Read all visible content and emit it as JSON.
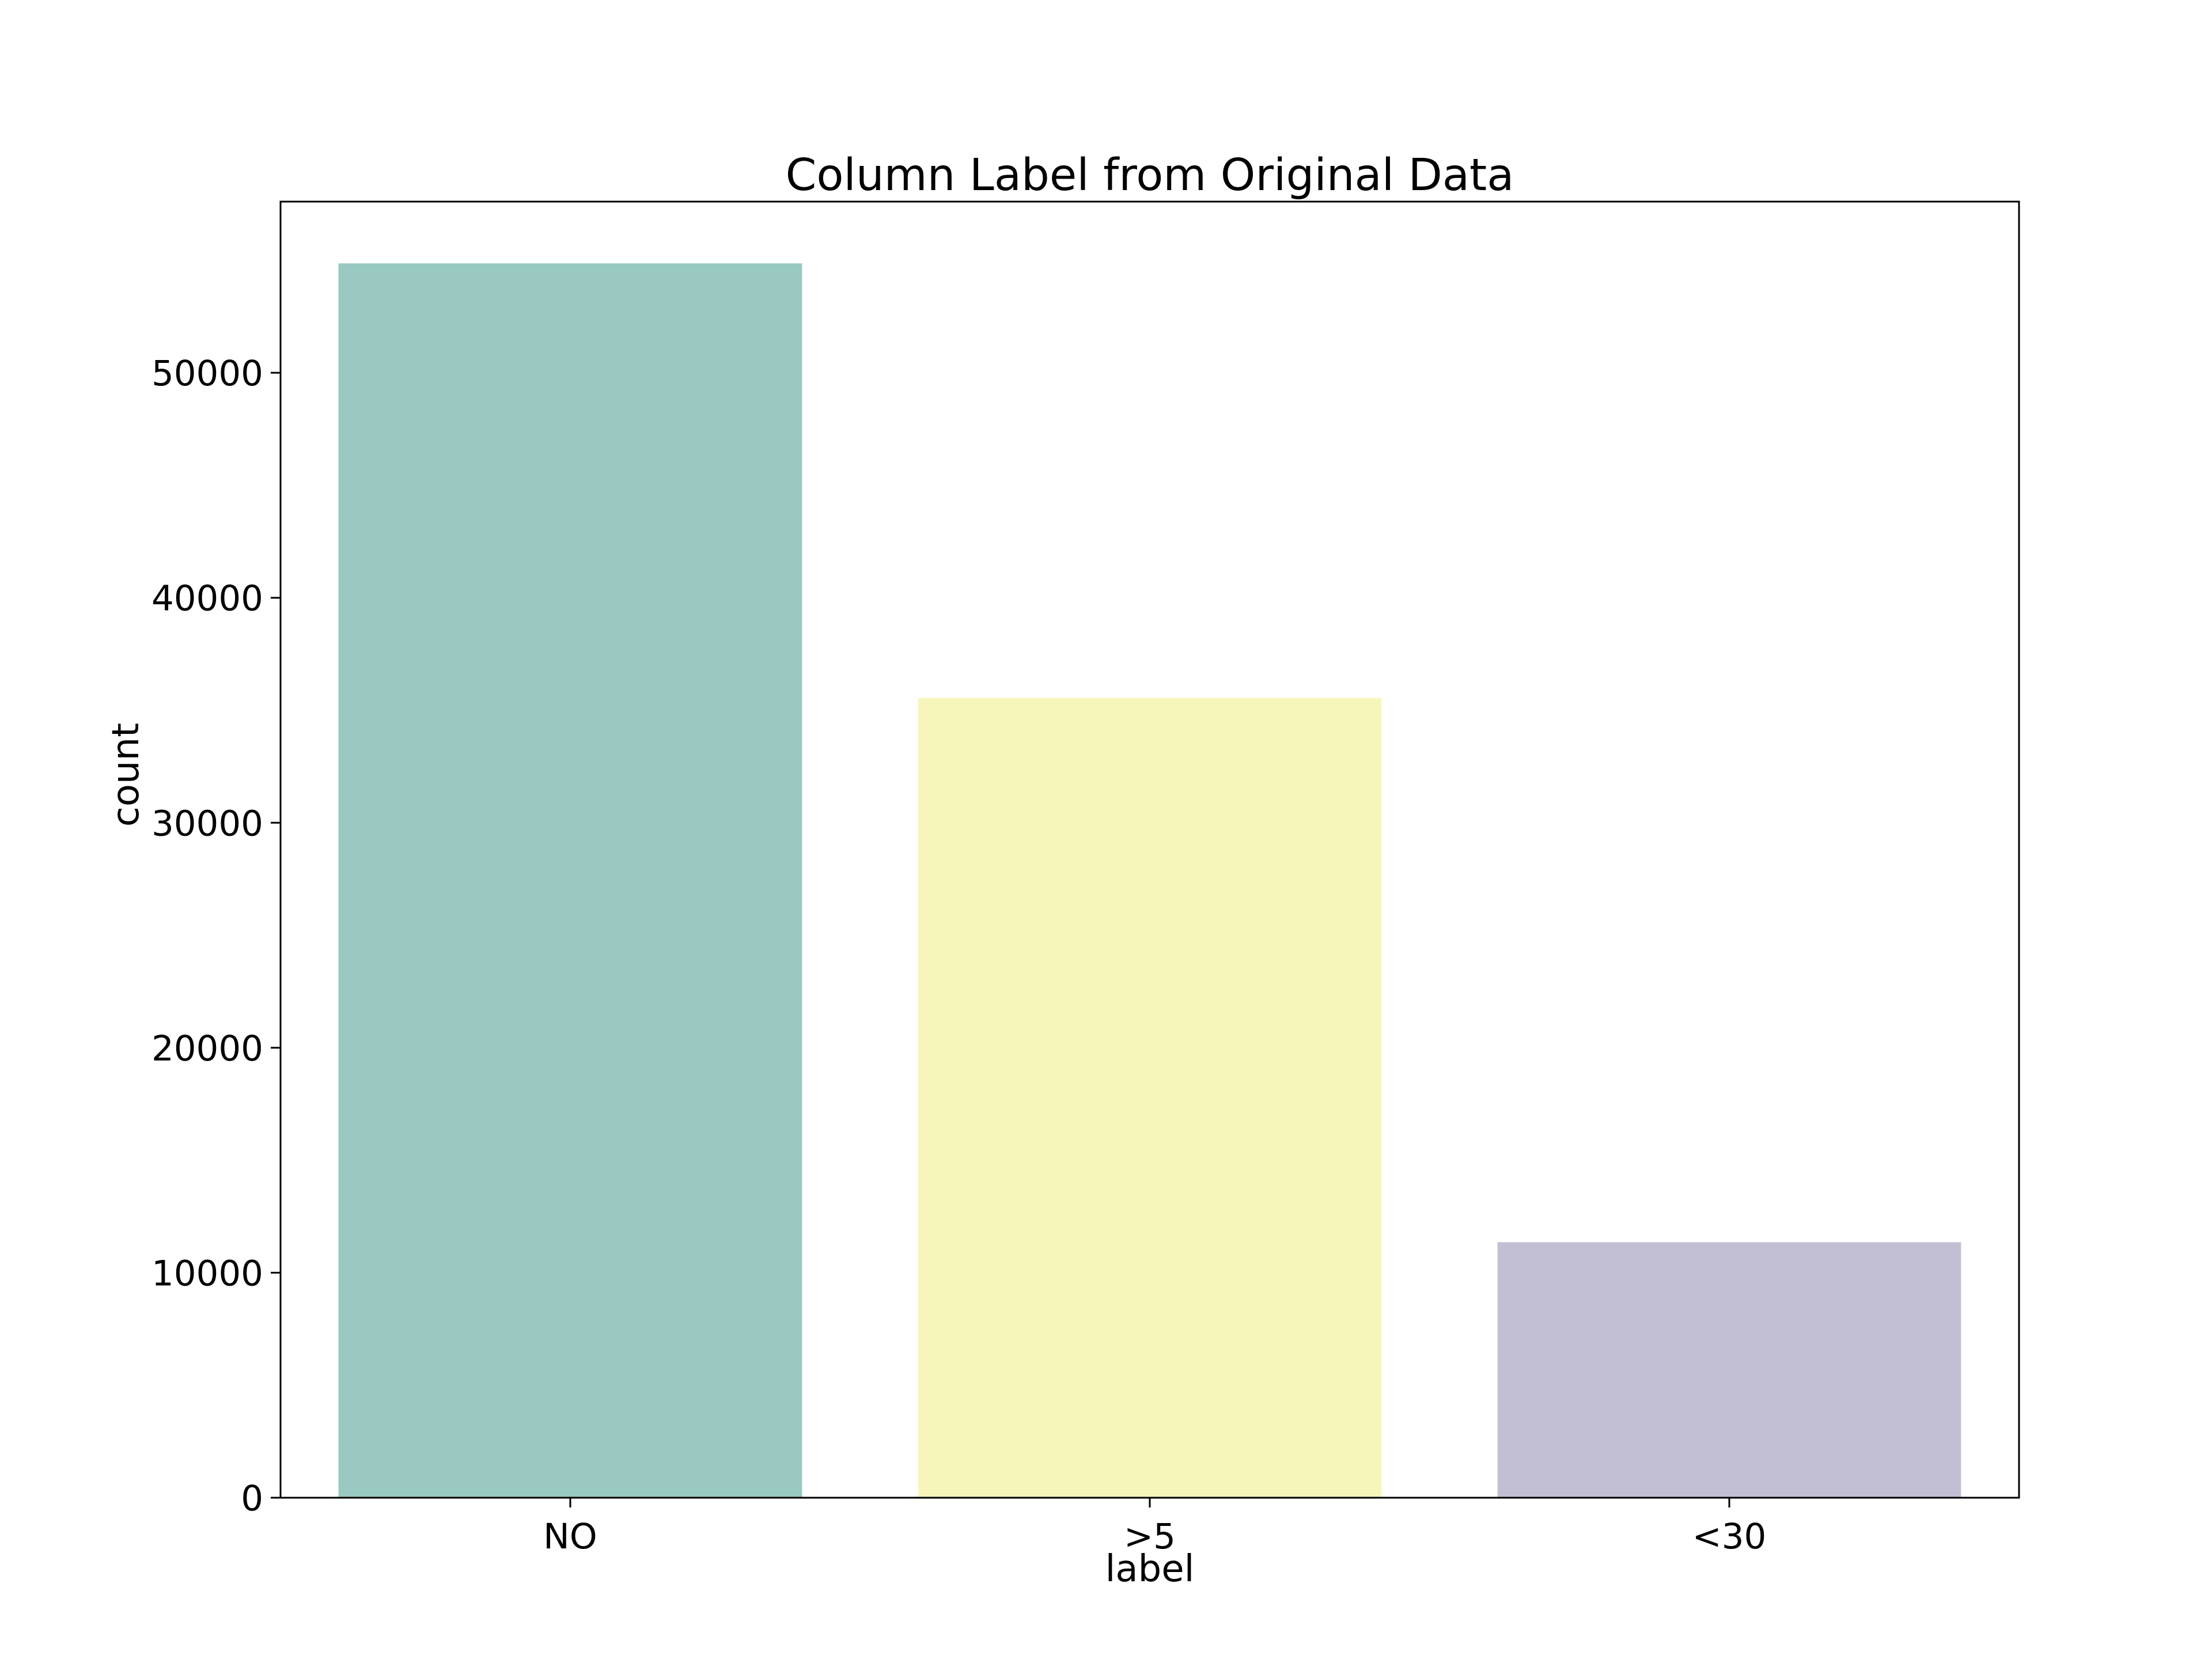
{
  "chart_data": {
    "type": "bar",
    "title": "Column Label from Original Data",
    "xlabel": "label",
    "ylabel": "count",
    "categories": [
      "NO",
      ">5",
      "<30"
    ],
    "values": [
      54864,
      35545,
      11357
    ],
    "colors": [
      "#99c9c1",
      "#f6f6bb",
      "#c2bfd5"
    ],
    "ylim": [
      0,
      57609
    ],
    "yticks": [
      0,
      10000,
      20000,
      30000,
      40000,
      50000
    ],
    "ytick_labels": [
      "0",
      "10000",
      "20000",
      "30000",
      "40000",
      "50000"
    ],
    "grid": false,
    "legend": false
  }
}
